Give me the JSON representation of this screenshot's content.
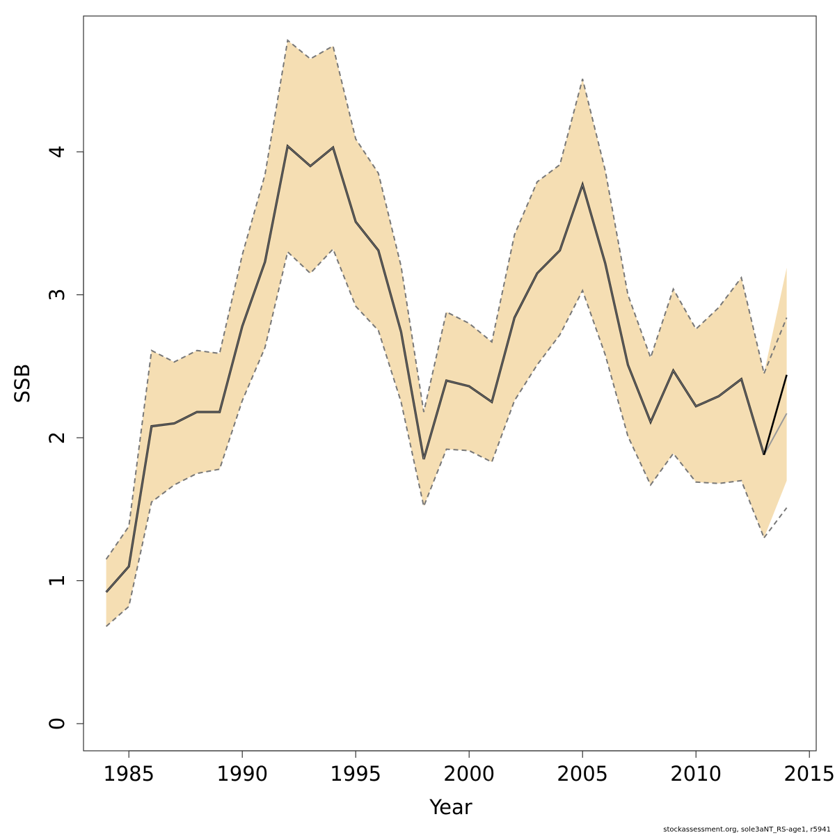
{
  "chart_data": {
    "type": "line",
    "xlabel": "Year",
    "ylabel": "SSB",
    "xlim": [
      1983,
      2015.3
    ],
    "ylim": [
      -0.19,
      4.95
    ],
    "x_ticks": [
      1985,
      1990,
      1995,
      2000,
      2005,
      2010,
      2015
    ],
    "y_ticks": [
      0,
      1,
      2,
      3,
      4
    ],
    "grid": false,
    "legend": "none",
    "colors": {
      "band": "#f5deb3",
      "bounds": "#777777",
      "estimate": "#333333",
      "forecast_high": "#000000",
      "forecast_low": "#999999"
    },
    "x": [
      1984,
      1985,
      1986,
      1987,
      1988,
      1989,
      1990,
      1991,
      1992,
      1993,
      1994,
      1995,
      1996,
      1997,
      1998,
      1999,
      2000,
      2001,
      2002,
      2003,
      2004,
      2005,
      2006,
      2007,
      2008,
      2009,
      2010,
      2011,
      2012,
      2013
    ],
    "series": [
      {
        "values": [
          0.92,
          1.1,
          2.08,
          2.1,
          2.18,
          2.18,
          2.78,
          3.23,
          4.04,
          3.9,
          4.03,
          3.51,
          3.31,
          2.74,
          1.85,
          2.4,
          2.36,
          2.25,
          2.84,
          3.15,
          3.31,
          3.77,
          3.22,
          2.51,
          2.11,
          2.47,
          2.22,
          2.29,
          2.41,
          1.88
        ]
      },
      {
        "values": [
          1.15,
          1.38,
          2.61,
          2.53,
          2.61,
          2.59,
          3.28,
          3.84,
          4.78,
          4.65,
          4.74,
          4.09,
          3.85,
          3.2,
          2.18,
          2.88,
          2.8,
          2.67,
          3.42,
          3.79,
          3.91,
          4.51,
          3.87,
          3.0,
          2.56,
          3.04,
          2.76,
          2.91,
          3.12,
          2.45
        ]
      },
      {
        "values": [
          0.68,
          0.82,
          1.55,
          1.67,
          1.75,
          1.78,
          2.26,
          2.63,
          3.3,
          3.15,
          3.32,
          2.92,
          2.75,
          2.25,
          1.52,
          1.92,
          1.91,
          1.83,
          2.26,
          2.51,
          2.72,
          3.03,
          2.58,
          2.01,
          1.67,
          1.89,
          1.69,
          1.68,
          1.7,
          1.3
        ]
      }
    ],
    "forecast": {
      "x": [
        2013,
        2014
      ],
      "band_upper": [
        2.45,
        3.19
      ],
      "band_lower_fill": [
        1.3,
        1.7
      ],
      "upper_dashed": [
        2.45,
        2.84
      ],
      "lower_dashed": [
        1.3,
        1.51
      ],
      "line_high": [
        1.88,
        2.44
      ],
      "line_low": [
        1.88,
        2.17
      ]
    }
  },
  "footer": "stockassessment.org, sole3aNT_RS-age1, r5941"
}
